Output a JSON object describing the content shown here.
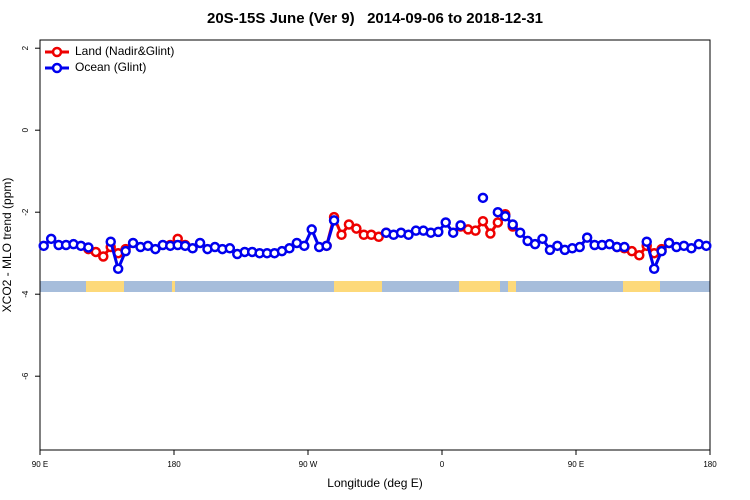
{
  "chart_data": {
    "type": "line",
    "title": "20S-15S June (Ver 9)   2014-09-06 to 2018-12-31",
    "xlabel": "Longitude (deg E)",
    "ylabel": "XCO2 - MLO trend (ppm)",
    "xlim": [
      90,
      540
    ],
    "ylim": [
      -7.8,
      2.2
    ],
    "xticks": [
      {
        "value": 90,
        "label": "90 E"
      },
      180,
      {
        "value": 270,
        "label": "90 W"
      },
      {
        "value": 360,
        "label": "0"
      },
      {
        "value": 450,
        "label": "90 E"
      },
      {
        "value": 540,
        "label": "180"
      }
    ],
    "yticks": [
      2,
      0,
      -2,
      -4,
      -6
    ],
    "legend": "top-left",
    "x": [
      92.5,
      97.5,
      102.5,
      107.5,
      112.5,
      117.5,
      122.5,
      127.5,
      132.5,
      137.5,
      142.5,
      147.5,
      152.5,
      157.5,
      162.5,
      167.5,
      172.5,
      177.5,
      182.5,
      187.5,
      192.5,
      197.5,
      202.5,
      207.5,
      212.5,
      217.5,
      222.5,
      227.5,
      232.5,
      237.5,
      242.5,
      247.5,
      252.5,
      257.5,
      262.5,
      267.5,
      272.5,
      277.5,
      282.5,
      287.5,
      292.5,
      297.5,
      302.5,
      307.5,
      312.5,
      317.5,
      322.5,
      327.5,
      332.5,
      337.5,
      342.5,
      347.5,
      352.5,
      357.5,
      362.5,
      367.5,
      372.5,
      377.5,
      382.5,
      387.5,
      392.5,
      397.5,
      402.5,
      407.5,
      412.5,
      417.5,
      422.5,
      427.5,
      432.5,
      437.5,
      442.5,
      447.5,
      452.5,
      457.5,
      462.5,
      467.5,
      472.5,
      477.5,
      482.5,
      487.5,
      492.5,
      497.5,
      502.5,
      507.5,
      512.5,
      517.5,
      522.5,
      527.5,
      532.5,
      537.5
    ],
    "series": [
      {
        "name": "Land (Nadir&Glint)",
        "color": "#ee0000",
        "values": [
          null,
          null,
          null,
          null,
          null,
          null,
          -2.9,
          -2.97,
          -3.08,
          -2.85,
          -3.0,
          -2.9,
          null,
          null,
          null,
          null,
          null,
          -2.8,
          -2.65,
          -2.8,
          null,
          null,
          null,
          null,
          null,
          null,
          null,
          null,
          null,
          null,
          null,
          null,
          null,
          null,
          null,
          null,
          null,
          null,
          -2.82,
          -2.12,
          -2.55,
          -2.3,
          -2.4,
          -2.55,
          -2.55,
          -2.6,
          -2.5,
          null,
          null,
          null,
          null,
          null,
          null,
          null,
          null,
          null,
          -2.35,
          -2.42,
          -2.45,
          -2.22,
          -2.52,
          -2.25,
          -2.05,
          -2.35,
          null,
          null,
          null,
          null,
          null,
          null,
          null,
          null,
          null,
          null,
          null,
          null,
          null,
          -2.85,
          -2.88,
          -2.95,
          -3.05,
          -2.82,
          -3.0,
          -2.9,
          -2.75,
          null,
          null,
          null,
          null,
          null
        ]
      },
      {
        "name": "Ocean (Glint)",
        "color": "#0000ee",
        "values": [
          -2.82,
          -2.65,
          -2.8,
          -2.8,
          -2.78,
          -2.82,
          -2.86,
          null,
          null,
          -2.72,
          -3.38,
          -2.95,
          -2.75,
          -2.85,
          -2.82,
          -2.9,
          -2.8,
          -2.82,
          -2.8,
          -2.82,
          -2.88,
          -2.75,
          -2.9,
          -2.85,
          -2.9,
          -2.88,
          -3.02,
          -2.97,
          -2.97,
          -3.0,
          -3.0,
          -3.0,
          -2.95,
          -2.88,
          -2.75,
          -2.82,
          -2.42,
          -2.85,
          -2.82,
          -2.2,
          null,
          null,
          null,
          null,
          null,
          null,
          -2.5,
          -2.55,
          -2.5,
          -2.55,
          -2.45,
          -2.45,
          -2.5,
          -2.48,
          -2.25,
          -2.5,
          -2.32,
          null,
          null,
          -1.65,
          null,
          -2.0,
          -2.1,
          -2.3,
          -2.5,
          -2.7,
          -2.78,
          -2.65,
          -2.92,
          -2.82,
          -2.92,
          -2.88,
          -2.85,
          -2.62,
          -2.8,
          -2.8,
          -2.78,
          -2.85,
          -2.85,
          null,
          null,
          -2.72,
          -3.38,
          -2.95,
          -2.75,
          -2.85,
          -2.82,
          -2.88,
          -2.78,
          -2.82
        ]
      }
    ]
  }
}
